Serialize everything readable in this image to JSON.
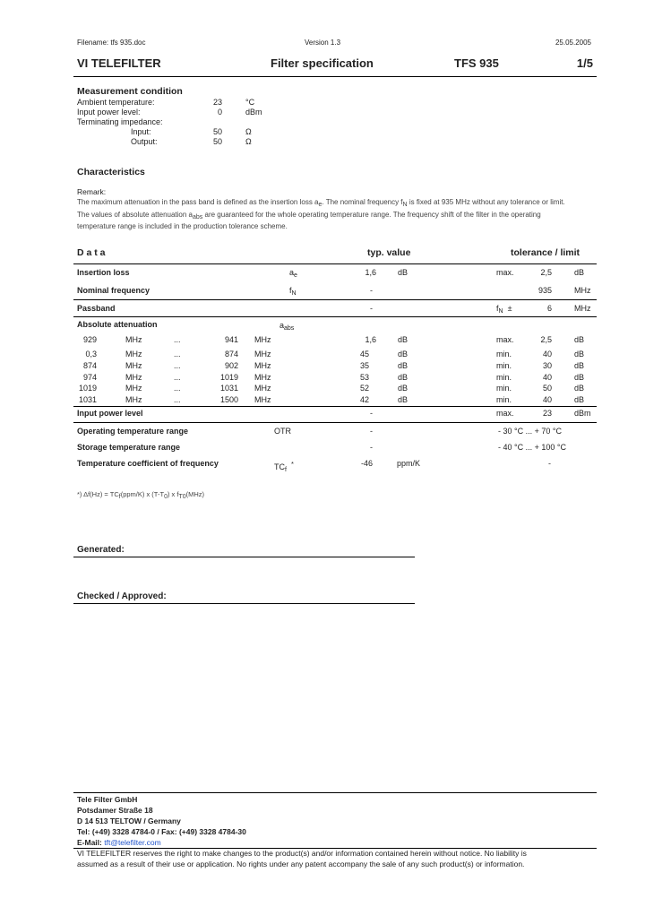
{
  "header": {
    "filename": "Filename: tfs 935.doc",
    "version": "Version 1.3",
    "date": "25.05.2005",
    "company": "VI TELEFILTER",
    "doc_title": "Filter specification",
    "part": "TFS 935",
    "page": "1/5"
  },
  "measurement": {
    "title": "Measurement condition",
    "rows": [
      {
        "label": "Ambient temperature:",
        "value": "23",
        "unit": "°C"
      },
      {
        "label": "Input power level:",
        "value": "0",
        "unit": "dBm"
      },
      {
        "label": "Terminating impedance:",
        "value": "",
        "unit": ""
      },
      {
        "label": "Input:",
        "value": "50",
        "unit": "Ω"
      },
      {
        "label": "Output:",
        "value": "50",
        "unit": "Ω"
      }
    ]
  },
  "characteristics": {
    "title": "Characteristics",
    "remark_label": "Remark:",
    "remark_1a": "The maximum attenuation in the pass band is defined as the insertion loss a",
    "remark_1sub": "e",
    "remark_1b": ". The nominal frequency f",
    "remark_1sub2": "N",
    "remark_1c": " is fixed at 935 MHz without any tolerance or limit.",
    "remark_2a": "The values of absolute attenuation a",
    "remark_2sub": "abs",
    "remark_2b": " are guaranteed for the whole operating temperature range. The frequency shift of the filter in the operating",
    "remark_3": "temperature range is included in the production tolerance scheme."
  },
  "table": {
    "col_data": "D a t a",
    "col_typ": "typ. value",
    "col_tol": "tolerance / limit",
    "insertion": {
      "label": "Insertion loss",
      "sym": "a",
      "sym_sub": "e",
      "typ": "1,6",
      "typ_unit": "dB",
      "tol_kind": "max.",
      "tol": "2,5",
      "tol_unit": "dB"
    },
    "nominal": {
      "label": "Nominal frequency",
      "sym": "f",
      "sym_sub": "N",
      "typ": "-",
      "tol": "935",
      "tol_unit": "MHz"
    },
    "passband": {
      "label": "Passband",
      "typ": "-",
      "tol_kind": "f",
      "tol_kind_sub": "N",
      "tol_pm": "±",
      "tol": "6",
      "tol_unit": "MHz"
    },
    "attenuation": {
      "label": "Absolute attenuation",
      "sym": "a",
      "sym_sub": "abs",
      "rows": [
        {
          "from": "929",
          "to": "941",
          "typ": "1,6",
          "kind": "max.",
          "tol": "2,5"
        },
        {
          "from": "0,3",
          "to": "874",
          "typ": "45",
          "kind": "min.",
          "tol": "40"
        },
        {
          "from": "874",
          "to": "902",
          "typ": "35",
          "kind": "min.",
          "tol": "30"
        },
        {
          "from": "974",
          "to": "1019",
          "typ": "53",
          "kind": "min.",
          "tol": "40"
        },
        {
          "from": "1019",
          "to": "1031",
          "typ": "52",
          "kind": "min.",
          "tol": "50"
        },
        {
          "from": "1031",
          "to": "1500",
          "typ": "42",
          "kind": "min.",
          "tol": "40"
        }
      ],
      "unit_mhz": "MHz",
      "dots": "...",
      "unit_db": "dB"
    },
    "input_power": {
      "label": "Input power level",
      "typ": "-",
      "tol_kind": "max.",
      "tol": "23",
      "tol_unit": "dBm"
    },
    "otr": {
      "label": "Operating temperature range",
      "sym": "OTR",
      "typ": "-",
      "tol": "- 30 °C ... + 70 °C"
    },
    "storage": {
      "label": "Storage temperature range",
      "typ": "-",
      "tol": "- 40 °C ... + 100 °C"
    },
    "tcf": {
      "label": "Temperature coefficient of frequency",
      "sym": "TC",
      "sym_sub": "f",
      "star": "*",
      "typ": "-46",
      "typ_unit": "ppm/K",
      "tol": "-"
    },
    "footnote_a": "*)  Δf(Hz) = TC",
    "footnote_sub1": "f",
    "footnote_b": "(ppm/K) x (T-T",
    "footnote_sub2": "0",
    "footnote_c": ") x f",
    "footnote_sub3": "T0",
    "footnote_d": "(MHz)"
  },
  "signatures": {
    "generated": "Generated:",
    "checked": "Checked / Approved:"
  },
  "footer": {
    "company": "Tele Filter GmbH",
    "street": "Potsdamer Straße 18",
    "city": "D 14 513 TELTOW / Germany",
    "phone": "Tel: (+49) 3328 4784-0 / Fax: (+49) 3328 4784-30",
    "email_label": "E-Mail: ",
    "email": "tft@telefilter.com",
    "disclaimer_1": "VI TELEFILTER reserves the right to make changes to the product(s) and/or information contained herein without notice.  No liability is",
    "disclaimer_2": "assumed as a result of their use or application.  No rights under any patent accompany the sale of any such product(s) or information."
  }
}
